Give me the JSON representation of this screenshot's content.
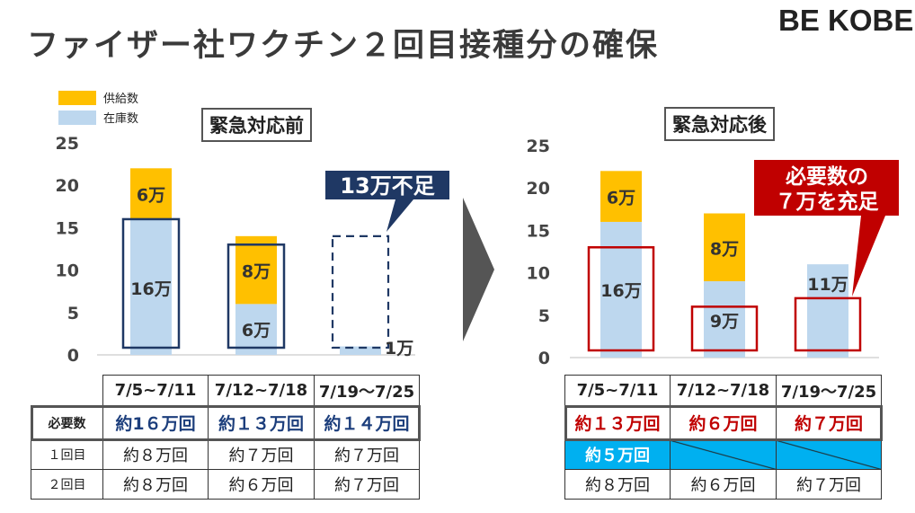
{
  "title": "ファイザー社ワクチン２回目接種分の確保",
  "logo": "BE KOBE",
  "legend": [
    {
      "label": "供給数",
      "color": "#ffc000"
    },
    {
      "label": "在庫数",
      "color": "#bdd7ee"
    }
  ],
  "before": {
    "label": "緊急対応前",
    "callout": "13万不足",
    "chart_data": {
      "type": "bar",
      "categories": [
        "7/5~7/11",
        "7/12~7/18",
        "7/19〜7/25"
      ],
      "series": [
        {
          "name": "在庫数",
          "values": [
            16,
            6,
            1
          ]
        },
        {
          "name": "供給数",
          "values": [
            6,
            8,
            0
          ]
        }
      ],
      "ylim": [
        0,
        25
      ],
      "yticks": [
        "0",
        "5",
        "10",
        "15",
        "20",
        "25"
      ],
      "requirement": [
        16,
        13,
        14
      ],
      "data_labels": {
        "stock": [
          "16万",
          "6万",
          "1万"
        ],
        "supply": [
          "6万",
          "8万",
          ""
        ]
      }
    },
    "table": {
      "headers": [
        "7/5~7/11",
        "7/12~7/18",
        "7/19〜7/25"
      ],
      "required_label": "必要数",
      "required": [
        "約1６万回",
        "約１３万回",
        "約１４万回"
      ],
      "dose1_label": "１回目",
      "dose1": [
        "約８万回",
        "約７万回",
        "約７万回"
      ],
      "dose2_label": "２回目",
      "dose2": [
        "約８万回",
        "約６万回",
        "約７万回"
      ]
    }
  },
  "after": {
    "label": "緊急対応後",
    "callout_line1": "必要数の",
    "callout_line2": "７万を充足",
    "chart_data": {
      "type": "bar",
      "categories": [
        "7/5~7/11",
        "7/12~7/18",
        "7/19〜7/25"
      ],
      "series": [
        {
          "name": "在庫数",
          "values": [
            16,
            9,
            11
          ]
        },
        {
          "name": "供給数",
          "values": [
            6,
            8,
            0
          ]
        }
      ],
      "ylim": [
        0,
        25
      ],
      "yticks": [
        "0",
        "5",
        "10",
        "15",
        "20",
        "25"
      ],
      "requirement": [
        13,
        6,
        7
      ],
      "data_labels": {
        "stock": [
          "16万",
          "9万",
          "11万"
        ],
        "supply": [
          "6万",
          "8万",
          ""
        ]
      }
    },
    "table": {
      "headers": [
        "7/5~7/11",
        "7/12~7/18",
        "7/19〜7/25"
      ],
      "required": [
        "約１３万回",
        "約６万回",
        "約７万回"
      ],
      "dose1": [
        "約５万回",
        "",
        ""
      ],
      "dose2": [
        "約８万回",
        "約６万回",
        "約７万回"
      ]
    }
  }
}
